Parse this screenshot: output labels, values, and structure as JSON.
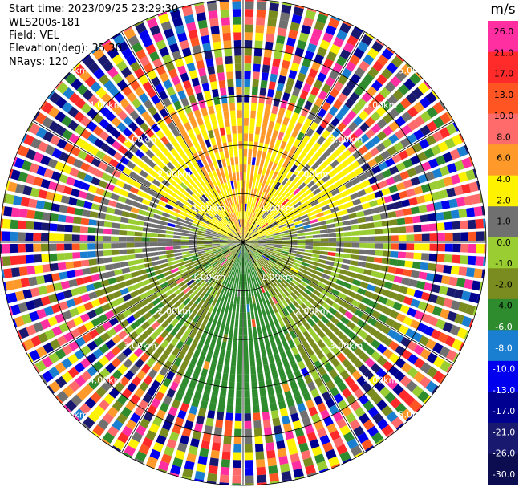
{
  "header": {
    "start_time": "Start time: 2023/09/25 23:29:30",
    "instrument": "WLS200s-181",
    "field": "Field: VEL",
    "elevation": "Elevation(deg): 35.30",
    "nrays": "NRays: 120"
  },
  "colorbar": {
    "unit": "m/s",
    "ticks": [
      "26.0",
      "21.0",
      "17.0",
      "13.0",
      "10.0",
      "8.0",
      "6.0",
      "4.0",
      "2.0",
      "1.0",
      "0.0",
      "-1.0",
      "-2.0",
      "-4.0",
      "-6.0",
      "-8.0",
      "-10.0",
      "-13.0",
      "-17.0",
      "-21.0",
      "-26.0",
      "-30.0"
    ],
    "colors": [
      "#ff2ea1",
      "#ff2ea1",
      "#ff2a2a",
      "#ff2a2a",
      "#ff5522",
      "#ff5522",
      "#ff6b6b",
      "#ff6b6b",
      "#ff9a2a",
      "#ff9a2a",
      "#fff200",
      "#fff200",
      "#707070",
      "#707070",
      "#9acd32",
      "#9acd32",
      "#7a8b1f",
      "#7a8b1f",
      "#2e8b2e",
      "#2e8b2e",
      "#1a7fd0",
      "#1a7fd0",
      "#0000ee",
      "#0000ee",
      "#000090",
      "#000090",
      "#191970",
      "#191970",
      "#0c0c50",
      "#0c0c50"
    ]
  },
  "chart_data": {
    "type": "ppi",
    "field": "VEL",
    "nrays": 120,
    "elevation_deg": 35.3,
    "range_rings_km": [
      1.0,
      2.0,
      3.0,
      4.0,
      5.0
    ],
    "range_labels": [
      "1.00km",
      "2.00km",
      "3.00km",
      "4.00km",
      "5.00km"
    ],
    "max_range_km": 5.0,
    "range_gate_km": 0.16,
    "vrange": [
      -30.0,
      30.0
    ],
    "velocity_sectors": [
      {
        "az_from": 330,
        "az_to": 30,
        "range_km": [
          0,
          2.8
        ],
        "value": 6.0
      },
      {
        "az_from": 30,
        "az_to": 75,
        "range_km": [
          0,
          2.8
        ],
        "value": 2.0
      },
      {
        "az_from": 75,
        "az_to": 105,
        "range_km": [
          0,
          3.0
        ],
        "value": -1.5
      },
      {
        "az_from": 105,
        "az_to": 155,
        "range_km": [
          0,
          3.5
        ],
        "value": -3.0
      },
      {
        "az_from": 155,
        "az_to": 205,
        "range_km": [
          0,
          3.5
        ],
        "value": -6.0
      },
      {
        "az_from": 205,
        "az_to": 255,
        "range_km": [
          0,
          3.0
        ],
        "value": -3.0
      },
      {
        "az_from": 255,
        "az_to": 290,
        "range_km": [
          0,
          3.0
        ],
        "value": -1.0
      },
      {
        "az_from": 290,
        "az_to": 330,
        "range_km": [
          0,
          2.8
        ],
        "value": 2.0
      }
    ],
    "noise_beyond_km": 2.8
  }
}
